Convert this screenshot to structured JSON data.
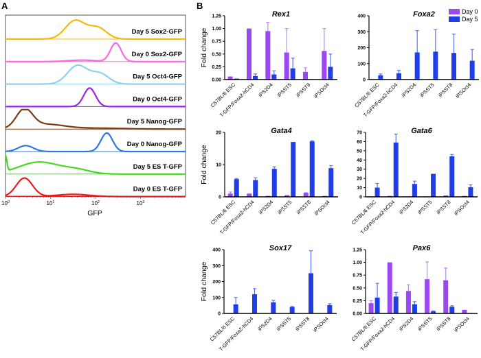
{
  "panel_a_letter": "A",
  "panel_b_letter": "B",
  "colors": {
    "day0": "#9a48f2",
    "day5": "#1f3ee6",
    "day0_err": "#b98af6",
    "day5_err": "#5a70f0"
  },
  "chart_data": [
    {
      "type": "area",
      "panel": "A",
      "xlabel": "GFP",
      "xscale": "log",
      "xlim": [
        1,
        10000
      ],
      "xtick_labels": [
        {
          "base": "10",
          "exp": "0"
        },
        {
          "base": "10",
          "exp": "1"
        },
        {
          "base": "10",
          "exp": "2"
        },
        {
          "base": "10",
          "exp": "3"
        }
      ],
      "series": [
        {
          "name": "Day 5 Sox2-GFP",
          "color": "#f5b80a",
          "peaks_log10": [
            [
              1.55,
              0.22,
              1.0
            ],
            [
              2.05,
              0.2,
              0.6
            ]
          ]
        },
        {
          "name": "Day 0 Sox2-GFP",
          "color": "#ff66dd",
          "peaks_log10": [
            [
              2.45,
              0.12,
              1.0
            ],
            [
              1.7,
              0.3,
              0.08
            ]
          ]
        },
        {
          "name": "Day 5 Oct4-GFP",
          "color": "#8fd0f0",
          "peaks_log10": [
            [
              1.6,
              0.22,
              1.0
            ],
            [
              2.1,
              0.2,
              0.55
            ]
          ]
        },
        {
          "name": "Day 0 Oct4-GFP",
          "color": "#9a22ee",
          "peaks_log10": [
            [
              1.87,
              0.13,
              1.0
            ]
          ]
        },
        {
          "name": "Day 5 Nanog-GFP",
          "color": "#7a3a12",
          "peaks_log10": [
            [
              0.42,
              0.18,
              1.0
            ],
            [
              0.9,
              0.4,
              0.25
            ],
            [
              2.0,
              0.6,
              0.05
            ]
          ]
        },
        {
          "name": "Day 0 Nanog-GFP",
          "color": "#2a78e8",
          "peaks_log10": [
            [
              0.45,
              0.17,
              0.32
            ],
            [
              2.25,
              0.13,
              1.0
            ]
          ]
        },
        {
          "name": "Day 5 ES T-GFP",
          "color": "#3fdc18",
          "peaks_log10": [
            [
              0.0,
              0.03,
              0.85
            ],
            [
              0.75,
              0.45,
              0.65
            ],
            [
              1.6,
              0.3,
              0.2
            ]
          ]
        },
        {
          "name": "Day 0 ES T-GFP",
          "color": "#ee1a1a",
          "peaks_log10": [
            [
              0.42,
              0.18,
              1.0
            ],
            [
              1.5,
              0.35,
              0.12
            ]
          ]
        }
      ]
    },
    {
      "type": "bar",
      "panel": "B",
      "title": "Rex1",
      "ylabel": "Fold change",
      "ylim": [
        0,
        1.25
      ],
      "yticks": [
        "0.00",
        "0.25",
        "0.50",
        "0.75",
        "1.00",
        "1.25"
      ],
      "categories": [
        "C57BL/6 ESC",
        "T-GFP/Foxa2-hCD4",
        "iPS2D4",
        "iPSST5",
        "iPSST8",
        "iPSOct4"
      ],
      "series": [
        {
          "name": "Day 0",
          "values": [
            0.06,
            1.0,
            0.95,
            0.53,
            0.15,
            0.56
          ],
          "err_upper": [
            0.06,
            1.0,
            1.12,
            1.0,
            0.23,
            1.0
          ]
        },
        {
          "name": "Day 5",
          "values": [
            0.02,
            0.07,
            0.1,
            0.22,
            0,
            0.25
          ],
          "err_upper": [
            0.02,
            0.11,
            0.17,
            0.42,
            0,
            0.5
          ]
        }
      ]
    },
    {
      "type": "bar",
      "panel": "B",
      "title": "Foxa2",
      "ylabel": "",
      "ylim": [
        0,
        400
      ],
      "yticks": [
        "0",
        "100",
        "200",
        "300",
        "400"
      ],
      "categories": [
        "C57BL/6 ESC",
        "T-GFP/Foxa2-hCD4",
        "iPS2D4",
        "iPSST5",
        "iPSST8",
        "iPSOct4"
      ],
      "series": [
        {
          "name": "Day 0",
          "values": [
            0.5,
            1,
            1,
            3,
            1,
            1
          ],
          "err_upper": [
            0.5,
            1,
            1,
            3,
            1,
            1
          ]
        },
        {
          "name": "Day 5",
          "values": [
            27,
            40,
            170,
            175,
            167,
            118
          ],
          "err_upper": [
            35,
            57,
            307,
            313,
            285,
            188
          ]
        }
      ],
      "legend": {
        "placement": "top-right",
        "entries": [
          "Day 0",
          "Day 5"
        ]
      }
    },
    {
      "type": "bar",
      "panel": "B",
      "title": "Gata4",
      "ylabel": "Fold change",
      "ylim": [
        0,
        20
      ],
      "yticks": [
        "0",
        "10",
        "20"
      ],
      "categories": [
        "C57BL/6 ESC",
        "T-GFP/Foxa2-hCD4",
        "iPS2D4",
        "iPSST5",
        "iPSST8",
        "iPSOct4"
      ],
      "series": [
        {
          "name": "Day 0",
          "values": [
            1.0,
            1.0,
            0.3,
            0.5,
            1.2,
            0.3
          ],
          "err_upper": [
            1.5,
            1.0,
            0.3,
            0.5,
            1.3,
            0.3
          ]
        },
        {
          "name": "Day 5",
          "values": [
            5.5,
            5.2,
            8.7,
            17.0,
            17.2,
            8.9
          ],
          "err_upper": [
            5.7,
            5.9,
            9.3,
            17.0,
            17.4,
            9.7
          ]
        }
      ]
    },
    {
      "type": "bar",
      "panel": "B",
      "title": "Gata6",
      "ylabel": "",
      "ylim": [
        0,
        70
      ],
      "yticks": [
        "0",
        "10",
        "20",
        "30",
        "40",
        "50",
        "60",
        "70"
      ],
      "categories": [
        "C57BL/6 ESC",
        "T-GFP/Foxa2-hCD4",
        "iPS2D4",
        "iPSST5",
        "iPSST8",
        "iPSOct4"
      ],
      "series": [
        {
          "name": "Day 0",
          "values": [
            0.5,
            1,
            0.5,
            0.5,
            1.5,
            1
          ],
          "err_upper": [
            0.5,
            1,
            0.5,
            0.5,
            1.5,
            1
          ]
        },
        {
          "name": "Day 5",
          "values": [
            10,
            59,
            14,
            25,
            44,
            10.5
          ],
          "err_upper": [
            14.5,
            68,
            17,
            25,
            46,
            13
          ]
        }
      ]
    },
    {
      "type": "bar",
      "panel": "B",
      "title": "Sox17",
      "ylabel": "Fold change",
      "ylim": [
        0,
        400
      ],
      "yticks": [
        "0",
        "100",
        "200",
        "300",
        "400"
      ],
      "categories": [
        "C57BL/6 ESC",
        "T-GFP/Foxa2-hCD4",
        "iPS2D4",
        "iPSST5",
        "iPSST8",
        "iPSOct4"
      ],
      "series": [
        {
          "name": "Day 0",
          "values": [
            0.5,
            0.5,
            0.5,
            0.5,
            2,
            0.5
          ],
          "err_upper": [
            0.5,
            0.5,
            0.5,
            0.5,
            2,
            0.5
          ]
        },
        {
          "name": "Day 5",
          "values": [
            57,
            120,
            70,
            40,
            252,
            52
          ],
          "err_upper": [
            100,
            155,
            82,
            44,
            393,
            60
          ]
        }
      ]
    },
    {
      "type": "bar",
      "panel": "B",
      "title": "Pax6",
      "ylabel": "",
      "ylim": [
        0,
        1.25
      ],
      "yticks": [
        "0.00",
        "0.25",
        "0.50",
        "0.75",
        "1.00",
        "1.25"
      ],
      "categories": [
        "C57BL/6 ESC",
        "T-GFP/Foxa2-hCD4",
        "iPS2D4",
        "iPSST5",
        "iPSST8",
        "iPSOct4"
      ],
      "series": [
        {
          "name": "Day 0",
          "values": [
            0.2,
            1.0,
            0.44,
            0.67,
            0.65,
            0.07
          ],
          "err_upper": [
            0.25,
            1.0,
            0.56,
            1.01,
            0.89,
            0.07
          ]
        },
        {
          "name": "Day 5",
          "values": [
            0.31,
            0.33,
            0.18,
            0.04,
            0.13,
            0.01
          ],
          "err_upper": [
            0.59,
            0.41,
            0.23,
            0.05,
            0.15,
            0.01
          ]
        }
      ]
    }
  ]
}
